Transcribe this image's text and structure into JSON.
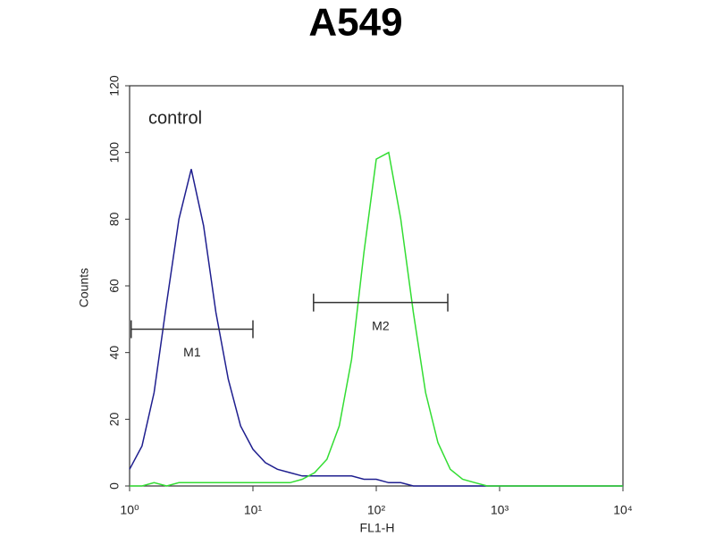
{
  "chart_data": {
    "type": "line",
    "title": "A549",
    "x_label": "FL1-H",
    "y_label": "Counts",
    "annotation": "control",
    "xscale": "log",
    "x": [
      1,
      1.26,
      1.58,
      2,
      2.51,
      3.16,
      3.98,
      5.01,
      6.31,
      7.94,
      10,
      12.6,
      15.8,
      20,
      25.1,
      31.6,
      39.8,
      50.1,
      63.1,
      79.4,
      100,
      126,
      158,
      200,
      251,
      316,
      398,
      501,
      631,
      794,
      1000,
      1260,
      1580,
      2000,
      2510,
      3160,
      3980,
      5010,
      6310,
      7940,
      10000
    ],
    "series": [
      {
        "color": "#1f1f8f",
        "values": [
          5,
          12,
          28,
          55,
          80,
          95,
          78,
          52,
          32,
          18,
          11,
          7,
          5,
          4,
          3,
          3,
          3,
          3,
          3,
          2,
          2,
          1,
          1,
          0,
          0,
          0,
          0,
          0,
          0,
          0,
          0,
          0,
          0,
          0,
          0,
          0,
          0,
          0,
          0,
          0,
          0
        ]
      },
      {
        "color": "#33dd33",
        "values": [
          0,
          0,
          1,
          0,
          1,
          1,
          1,
          1,
          1,
          1,
          1,
          1,
          1,
          1,
          2,
          4,
          8,
          18,
          38,
          70,
          98,
          100,
          80,
          52,
          28,
          13,
          5,
          2,
          1,
          0,
          0,
          0,
          0,
          0,
          0,
          0,
          0,
          0,
          0,
          0,
          0
        ]
      }
    ],
    "markers": [
      {
        "label": "M1",
        "range": [
          1.03,
          10
        ],
        "y": 47
      },
      {
        "label": "M2",
        "range": [
          31,
          380
        ],
        "y": 55
      }
    ],
    "xlim": [
      1,
      10000
    ],
    "xticks": [
      {
        "value": 1,
        "label": "10⁰"
      },
      {
        "value": 10,
        "label": "10¹"
      },
      {
        "value": 100,
        "label": "10²"
      },
      {
        "value": 1000,
        "label": "10³"
      },
      {
        "value": 10000,
        "label": "10⁴"
      }
    ],
    "ylim": [
      0,
      120
    ],
    "yticks": [
      0,
      20,
      40,
      60,
      80,
      100,
      120
    ]
  }
}
